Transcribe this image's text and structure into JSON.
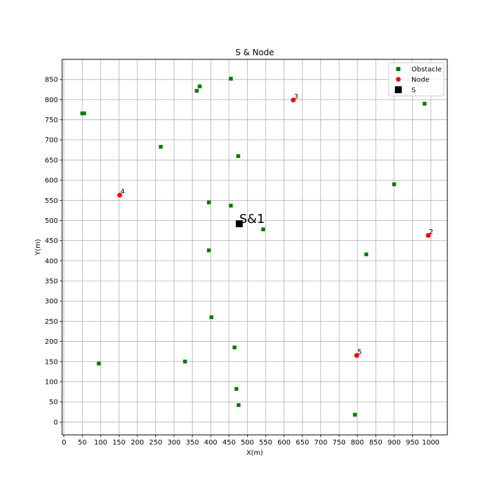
{
  "chart_data": {
    "type": "scatter",
    "title": "S & Node",
    "xlabel": "X(m)",
    "ylabel": "Y(m)",
    "xlim": [
      -5,
      1045
    ],
    "ylim": [
      -32,
      900
    ],
    "xticks": [
      0,
      50,
      100,
      150,
      200,
      250,
      300,
      350,
      400,
      450,
      500,
      550,
      600,
      650,
      700,
      750,
      800,
      850,
      900,
      950,
      1000
    ],
    "yticks": [
      0,
      50,
      100,
      150,
      200,
      250,
      300,
      350,
      400,
      450,
      500,
      550,
      600,
      650,
      700,
      750,
      800,
      850
    ],
    "grid": true,
    "legend_position": "top-right",
    "series": [
      {
        "name": "Obstacle",
        "color": "#007a00",
        "marker": "square",
        "points": [
          {
            "x": 455,
            "y": 852
          },
          {
            "x": 370,
            "y": 833
          },
          {
            "x": 362,
            "y": 822
          },
          {
            "x": 50,
            "y": 766
          },
          {
            "x": 55,
            "y": 766
          },
          {
            "x": 983,
            "y": 790
          },
          {
            "x": 264,
            "y": 683
          },
          {
            "x": 475,
            "y": 660
          },
          {
            "x": 900,
            "y": 590
          },
          {
            "x": 395,
            "y": 545
          },
          {
            "x": 455,
            "y": 537
          },
          {
            "x": 543,
            "y": 478
          },
          {
            "x": 395,
            "y": 426
          },
          {
            "x": 824,
            "y": 416
          },
          {
            "x": 402,
            "y": 260
          },
          {
            "x": 465,
            "y": 185
          },
          {
            "x": 95,
            "y": 145
          },
          {
            "x": 330,
            "y": 150
          },
          {
            "x": 470,
            "y": 82
          },
          {
            "x": 476,
            "y": 42
          },
          {
            "x": 793,
            "y": 18
          }
        ]
      },
      {
        "name": "Node",
        "color": "#ff0000",
        "marker": "circle",
        "points": [
          {
            "x": 625,
            "y": 799,
            "label": "3"
          },
          {
            "x": 152,
            "y": 563,
            "label": "4"
          },
          {
            "x": 993,
            "y": 463,
            "label": "2"
          },
          {
            "x": 798,
            "y": 165,
            "label": "5"
          }
        ]
      },
      {
        "name": "S",
        "color": "#000000",
        "marker": "square",
        "points": [
          {
            "x": 478,
            "y": 492,
            "label": "S&1"
          }
        ]
      }
    ]
  }
}
